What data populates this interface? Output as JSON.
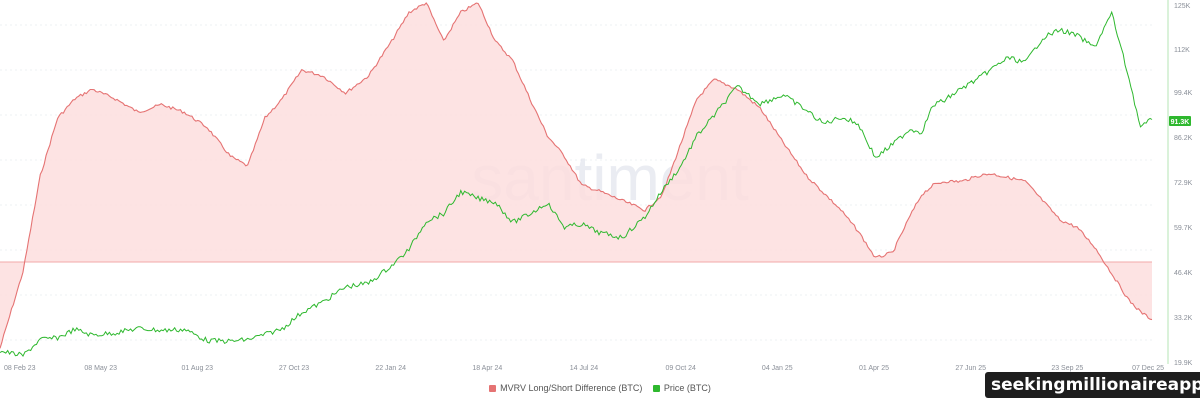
{
  "chart_data": {
    "type": "area",
    "x_ticks": [
      "08 Feb 23",
      "08 May 23",
      "01 Aug 23",
      "27 Oct 23",
      "22 Jan 24",
      "18 Apr 24",
      "14 Jul 24",
      "09 Oct 24",
      "04 Jan 25",
      "01 Apr 25",
      "27 Jun 25",
      "23 Sep 25",
      "07 Dec 25"
    ],
    "y_ticks_right": [
      "19.9K",
      "33.2K",
      "46.4K",
      "59.7K",
      "72.9K",
      "86.2K",
      "99.4K",
      "112K",
      "125K"
    ],
    "ylim_price": [
      19900,
      125000
    ],
    "watermark": "santiment",
    "current_price_label": "91.3K",
    "legend": [
      {
        "name": "MVRV Long/Short Difference (BTC)",
        "color": "#e57373"
      },
      {
        "name": "Price (BTC)",
        "color": "#2eb82e"
      }
    ],
    "series": [
      {
        "name": "MVRV Long/Short Difference (BTC)",
        "color": "#e57373",
        "x": [
          0,
          0.02,
          0.035,
          0.05,
          0.065,
          0.08,
          0.1,
          0.12,
          0.14,
          0.16,
          0.18,
          0.2,
          0.215,
          0.23,
          0.245,
          0.262,
          0.28,
          0.3,
          0.32,
          0.34,
          0.355,
          0.37,
          0.385,
          0.4,
          0.415,
          0.43,
          0.445,
          0.46,
          0.475,
          0.49,
          0.505,
          0.52,
          0.54,
          0.56,
          0.575,
          0.59,
          0.605,
          0.62,
          0.64,
          0.66,
          0.68,
          0.7,
          0.715,
          0.73,
          0.745,
          0.76,
          0.775,
          0.79,
          0.8,
          0.81,
          0.82,
          0.835,
          0.85,
          0.86,
          0.875,
          0.89,
          0.905,
          0.92,
          0.935,
          0.95,
          0.965,
          0.98,
          0.99,
          1.0
        ],
        "values": [
          -0.45,
          -0.05,
          0.45,
          0.75,
          0.85,
          0.9,
          0.85,
          0.78,
          0.82,
          0.78,
          0.7,
          0.55,
          0.5,
          0.75,
          0.85,
          1.0,
          0.97,
          0.88,
          0.97,
          1.15,
          1.3,
          1.35,
          1.15,
          1.3,
          1.35,
          1.15,
          1.05,
          0.85,
          0.66,
          0.55,
          0.4,
          0.37,
          0.32,
          0.27,
          0.35,
          0.6,
          0.85,
          0.95,
          0.9,
          0.8,
          0.62,
          0.45,
          0.36,
          0.27,
          0.16,
          0.02,
          0.05,
          0.24,
          0.35,
          0.4,
          0.42,
          0.42,
          0.45,
          0.46,
          0.44,
          0.42,
          0.32,
          0.22,
          0.18,
          0.08,
          -0.06,
          -0.2,
          -0.26,
          -0.3
        ]
      },
      {
        "name": "Price (BTC)",
        "color": "#2eb82e",
        "x": [
          0,
          0.02,
          0.035,
          0.05,
          0.065,
          0.08,
          0.1,
          0.12,
          0.14,
          0.16,
          0.18,
          0.2,
          0.215,
          0.23,
          0.245,
          0.262,
          0.28,
          0.3,
          0.32,
          0.34,
          0.355,
          0.37,
          0.385,
          0.4,
          0.415,
          0.43,
          0.445,
          0.46,
          0.475,
          0.49,
          0.505,
          0.52,
          0.54,
          0.56,
          0.575,
          0.59,
          0.605,
          0.62,
          0.64,
          0.66,
          0.68,
          0.7,
          0.715,
          0.73,
          0.745,
          0.76,
          0.775,
          0.79,
          0.8,
          0.81,
          0.82,
          0.835,
          0.85,
          0.86,
          0.875,
          0.89,
          0.905,
          0.92,
          0.935,
          0.95,
          0.965,
          0.98,
          0.99,
          1.0
        ],
        "values": [
          23100,
          21800,
          26500,
          27000,
          29500,
          27800,
          28500,
          29800,
          29200,
          29500,
          26200,
          26000,
          26500,
          28000,
          29700,
          34500,
          37500,
          42000,
          43100,
          48300,
          53000,
          61500,
          63500,
          70000,
          68000,
          67000,
          61000,
          63500,
          66800,
          59600,
          60500,
          58000,
          56500,
          62700,
          70500,
          77000,
          86500,
          92500,
          101000,
          96000,
          98500,
          94000,
          90000,
          92000,
          90000,
          80000,
          84000,
          88500,
          87500,
          95500,
          97000,
          100500,
          103500,
          106000,
          109500,
          108000,
          115300,
          117700,
          116000,
          112500,
          122600,
          103500,
          89000,
          91300
        ]
      }
    ]
  }
}
